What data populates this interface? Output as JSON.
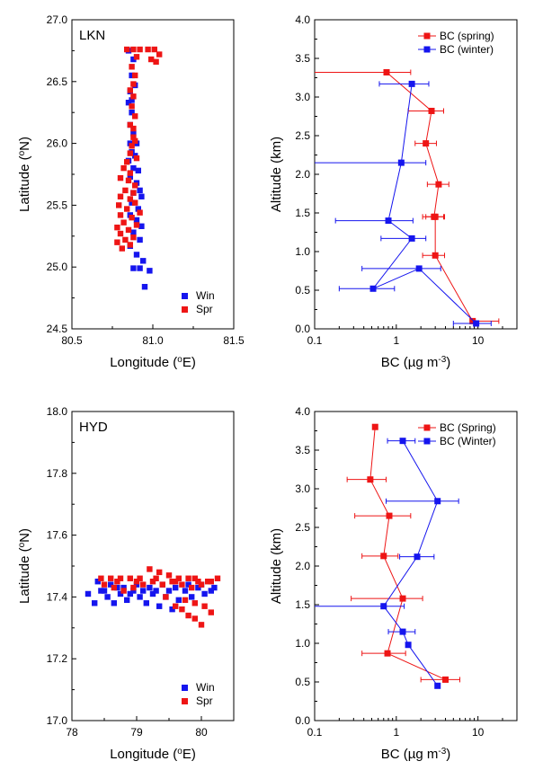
{
  "chart_data": [
    {
      "id": "lkn-track",
      "type": "scatter",
      "panel_label": "LKN",
      "xlabel": "Longitude (oE)",
      "ylabel": "Latitude (oN)",
      "xlim": [
        80.5,
        81.5
      ],
      "ylim": [
        24.5,
        27.0
      ],
      "xticks": [
        80.5,
        81.0,
        81.5
      ],
      "xticklabels": [
        "80.5",
        "81.0",
        "81.5"
      ],
      "yticks": [
        24.5,
        25.0,
        25.5,
        26.0,
        26.5,
        27.0
      ],
      "yticklabels": [
        "24.5",
        "25.0",
        "25.5",
        "26.0",
        "26.5",
        "27.0"
      ],
      "legend": "bottom-right",
      "series": [
        {
          "name": "Win",
          "color": "#1515ee",
          "points": [
            [
              80.85,
              26.75
            ],
            [
              80.88,
              26.68
            ],
            [
              80.87,
              26.55
            ],
            [
              80.86,
              26.42
            ],
            [
              80.85,
              26.33
            ],
            [
              80.87,
              26.25
            ],
            [
              80.86,
              26.15
            ],
            [
              80.88,
              26.08
            ],
            [
              80.86,
              26.0
            ],
            [
              80.87,
              25.93
            ],
            [
              80.85,
              25.86
            ],
            [
              80.88,
              25.8
            ],
            [
              80.86,
              25.73
            ],
            [
              80.9,
              25.68
            ],
            [
              80.88,
              25.6
            ],
            [
              80.93,
              25.57
            ],
            [
              80.87,
              25.52
            ],
            [
              80.91,
              25.47
            ],
            [
              80.86,
              25.42
            ],
            [
              80.9,
              25.38
            ],
            [
              80.93,
              25.33
            ],
            [
              80.88,
              25.28
            ],
            [
              80.92,
              25.22
            ],
            [
              80.86,
              25.17
            ],
            [
              80.9,
              25.1
            ],
            [
              80.94,
              25.05
            ],
            [
              80.88,
              24.99
            ],
            [
              80.92,
              24.99
            ],
            [
              80.98,
              24.97
            ],
            [
              80.95,
              24.84
            ],
            [
              80.89,
              26.47
            ],
            [
              80.87,
              26.35
            ],
            [
              80.9,
              26.0
            ],
            [
              80.89,
              25.9
            ],
            [
              80.91,
              25.78
            ],
            [
              80.92,
              25.62
            ]
          ]
        },
        {
          "name": "Spr",
          "color": "#ee1515",
          "points": [
            [
              80.84,
              26.76
            ],
            [
              80.88,
              26.76
            ],
            [
              80.92,
              26.76
            ],
            [
              80.97,
              26.76
            ],
            [
              81.01,
              26.76
            ],
            [
              81.04,
              26.72
            ],
            [
              80.99,
              26.68
            ],
            [
              81.02,
              26.66
            ],
            [
              80.9,
              26.7
            ],
            [
              80.87,
              26.62
            ],
            [
              80.89,
              26.55
            ],
            [
              80.88,
              26.48
            ],
            [
              80.86,
              26.43
            ],
            [
              80.88,
              26.38
            ],
            [
              80.87,
              26.3
            ],
            [
              80.89,
              26.22
            ],
            [
              80.86,
              26.15
            ],
            [
              80.88,
              26.05
            ],
            [
              80.87,
              25.98
            ],
            [
              80.86,
              25.92
            ],
            [
              80.84,
              25.85
            ],
            [
              80.82,
              25.8
            ],
            [
              80.86,
              25.76
            ],
            [
              80.8,
              25.72
            ],
            [
              80.85,
              25.7
            ],
            [
              80.89,
              25.66
            ],
            [
              80.83,
              25.62
            ],
            [
              80.8,
              25.57
            ],
            [
              80.86,
              25.55
            ],
            [
              80.79,
              25.5
            ],
            [
              80.84,
              25.47
            ],
            [
              80.8,
              25.42
            ],
            [
              80.87,
              25.4
            ],
            [
              80.82,
              25.36
            ],
            [
              80.78,
              25.32
            ],
            [
              80.85,
              25.3
            ],
            [
              80.8,
              25.27
            ],
            [
              80.83,
              25.22
            ],
            [
              80.78,
              25.2
            ],
            [
              80.81,
              25.15
            ],
            [
              80.86,
              25.18
            ],
            [
              80.88,
              25.24
            ],
            [
              80.9,
              25.34
            ],
            [
              80.92,
              25.44
            ],
            [
              80.89,
              25.52
            ],
            [
              80.88,
              25.6
            ],
            [
              80.9,
              25.88
            ],
            [
              80.89,
              26.02
            ],
            [
              80.88,
              26.12
            ]
          ]
        }
      ]
    },
    {
      "id": "lkn-profile",
      "type": "line",
      "xscale": "log",
      "xlabel": "BC (µg m-3)",
      "ylabel": "Altitude (km)",
      "xlim": [
        0.1,
        30
      ],
      "ylim": [
        0.0,
        4.0
      ],
      "xticks": [
        0.1,
        1,
        10
      ],
      "xticklabels": [
        "0.1",
        "1",
        "10"
      ],
      "yticks": [
        0.0,
        0.5,
        1.0,
        1.5,
        2.0,
        2.5,
        3.0,
        3.5,
        4.0
      ],
      "yticklabels": [
        "0.0",
        "0.5",
        "1.0",
        "1.5",
        "2.0",
        "2.5",
        "3.0",
        "3.5",
        "4.0"
      ],
      "legend": "top-right",
      "series": [
        {
          "name": "BC (spring)",
          "color": "#ee1515",
          "x": [
            8.6,
            3.0,
            3.0,
            2.9,
            3.3,
            2.3,
            2.7,
            0.76
          ],
          "y": [
            0.1,
            0.95,
            1.45,
            1.45,
            1.87,
            2.4,
            2.82,
            3.32
          ],
          "xerr_low": [
            8.3,
            2.1,
            2.1,
            2.3,
            2.4,
            1.7,
            1.4,
            0.02
          ],
          "xerr_high": [
            18.0,
            3.9,
            3.9,
            3.8,
            4.4,
            3.1,
            3.8,
            1.5
          ]
        },
        {
          "name": "BC (winter)",
          "color": "#1515ee",
          "x": [
            9.5,
            1.9,
            0.52,
            1.55,
            0.8,
            1.15,
            1.55
          ],
          "y": [
            0.07,
            0.78,
            0.52,
            1.17,
            1.4,
            2.15,
            3.17
          ],
          "xerr_low": [
            5.0,
            0.38,
            0.2,
            0.65,
            0.18,
            0.02,
            0.62
          ],
          "xerr_high": [
            14.5,
            3.5,
            0.95,
            2.3,
            1.6,
            2.3,
            2.5
          ]
        }
      ]
    },
    {
      "id": "hyd-track",
      "type": "scatter",
      "panel_label": "HYD",
      "xlabel": "Longitude (oE)",
      "ylabel": "Latitude (oN)",
      "xlim": [
        78.0,
        80.5
      ],
      "ylim": [
        17.0,
        18.0
      ],
      "xticks": [
        78,
        79,
        80
      ],
      "xticklabels": [
        "78",
        "79",
        "80"
      ],
      "yticks": [
        17.0,
        17.2,
        17.4,
        17.6,
        17.8,
        18.0
      ],
      "yticklabels": [
        "17.0",
        "17.2",
        "17.4",
        "17.6",
        "17.8",
        "18.0"
      ],
      "legend": "bottom-right",
      "series": [
        {
          "name": "Win",
          "color": "#1515ee",
          "points": [
            [
              78.25,
              17.41
            ],
            [
              78.35,
              17.38
            ],
            [
              78.45,
              17.42
            ],
            [
              78.55,
              17.4
            ],
            [
              78.65,
              17.38
            ],
            [
              78.75,
              17.41
            ],
            [
              78.85,
              17.39
            ],
            [
              78.95,
              17.42
            ],
            [
              79.05,
              17.4
            ],
            [
              79.15,
              17.38
            ],
            [
              79.25,
              17.41
            ],
            [
              79.35,
              17.37
            ],
            [
              79.45,
              17.4
            ],
            [
              79.55,
              17.36
            ],
            [
              79.65,
              17.39
            ],
            [
              79.75,
              17.42
            ],
            [
              79.85,
              17.4
            ],
            [
              79.95,
              17.43
            ],
            [
              80.05,
              17.41
            ],
            [
              80.15,
              17.42
            ],
            [
              78.4,
              17.45
            ],
            [
              78.6,
              17.44
            ],
            [
              78.8,
              17.43
            ],
            [
              79.0,
              17.44
            ],
            [
              79.2,
              17.43
            ],
            [
              79.4,
              17.44
            ],
            [
              79.6,
              17.43
            ],
            [
              79.8,
              17.44
            ],
            [
              80.0,
              17.44
            ],
            [
              80.2,
              17.43
            ],
            [
              78.5,
              17.42
            ],
            [
              78.7,
              17.43
            ],
            [
              78.9,
              17.41
            ],
            [
              79.1,
              17.42
            ],
            [
              79.3,
              17.42
            ],
            [
              79.5,
              17.42
            ]
          ]
        },
        {
          "name": "Spr",
          "color": "#ee1515",
          "points": [
            [
              78.45,
              17.46
            ],
            [
              78.6,
              17.46
            ],
            [
              78.75,
              17.46
            ],
            [
              78.9,
              17.46
            ],
            [
              79.05,
              17.46
            ],
            [
              79.2,
              17.49
            ],
            [
              79.35,
              17.48
            ],
            [
              79.5,
              17.47
            ],
            [
              79.65,
              17.46
            ],
            [
              79.8,
              17.46
            ],
            [
              79.95,
              17.45
            ],
            [
              80.1,
              17.45
            ],
            [
              80.25,
              17.46
            ],
            [
              78.5,
              17.44
            ],
            [
              78.65,
              17.43
            ],
            [
              78.8,
              17.42
            ],
            [
              78.95,
              17.43
            ],
            [
              79.1,
              17.44
            ],
            [
              79.25,
              17.45
            ],
            [
              79.4,
              17.44
            ],
            [
              79.55,
              17.45
            ],
            [
              79.7,
              17.44
            ],
            [
              79.85,
              17.43
            ],
            [
              80.0,
              17.44
            ],
            [
              80.15,
              17.45
            ],
            [
              79.45,
              17.4
            ],
            [
              79.6,
              17.37
            ],
            [
              79.7,
              17.36
            ],
            [
              79.8,
              17.34
            ],
            [
              79.9,
              17.33
            ],
            [
              80.0,
              17.31
            ],
            [
              79.75,
              17.39
            ],
            [
              79.9,
              17.38
            ],
            [
              80.05,
              17.37
            ],
            [
              80.15,
              17.35
            ],
            [
              78.7,
              17.45
            ],
            [
              79.0,
              17.45
            ],
            [
              79.3,
              17.46
            ],
            [
              79.6,
              17.45
            ],
            [
              79.9,
              17.46
            ]
          ]
        }
      ]
    },
    {
      "id": "hyd-profile",
      "type": "line",
      "xscale": "log",
      "xlabel": "BC (µg m-3)",
      "ylabel": "Altitude (km)",
      "xlim": [
        0.1,
        30
      ],
      "ylim": [
        0.0,
        4.0
      ],
      "xticks": [
        0.1,
        1,
        10
      ],
      "xticklabels": [
        "0.1",
        "1",
        "10"
      ],
      "yticks": [
        0.0,
        0.5,
        1.0,
        1.5,
        2.0,
        2.5,
        3.0,
        3.5,
        4.0
      ],
      "yticklabels": [
        "0.0",
        "0.5",
        "1.0",
        "1.5",
        "2.0",
        "2.5",
        "3.0",
        "3.5",
        "4.0"
      ],
      "legend": "top-right",
      "series": [
        {
          "name": "BC (Spring)",
          "color": "#ee1515",
          "x": [
            4.0,
            0.78,
            1.2,
            0.7,
            0.82,
            0.48,
            0.55
          ],
          "y": [
            0.53,
            0.87,
            1.58,
            2.13,
            2.65,
            3.12,
            3.8
          ],
          "xerr_low": [
            2.0,
            0.38,
            0.28,
            0.38,
            0.31,
            0.25,
            null
          ],
          "xerr_high": [
            6.0,
            1.3,
            2.1,
            1.05,
            1.5,
            0.75,
            null
          ]
        },
        {
          "name": "BC (Winter)",
          "color": "#1515ee",
          "x": [
            3.2,
            1.4,
            1.2,
            0.7,
            1.8,
            3.2,
            1.2
          ],
          "y": [
            0.45,
            0.98,
            1.15,
            1.48,
            2.12,
            2.84,
            3.62
          ],
          "xerr_low": [
            null,
            null,
            0.8,
            0.02,
            1.1,
            0.75,
            0.78
          ],
          "xerr_high": [
            null,
            null,
            1.7,
            1.25,
            2.9,
            5.8,
            1.7
          ]
        }
      ]
    }
  ]
}
